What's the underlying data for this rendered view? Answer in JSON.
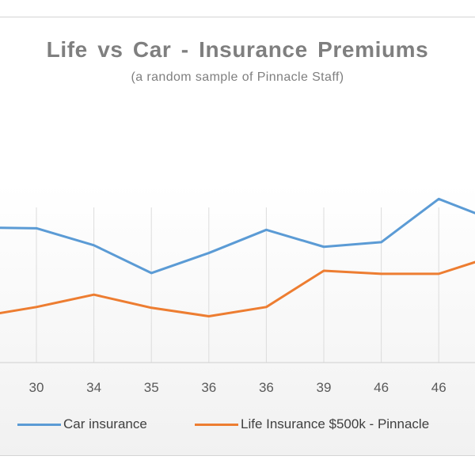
{
  "chart_data": {
    "type": "line",
    "title": "Life vs Car - Insurance Premiums",
    "subtitle": "(a random sample of Pinnacle Staff)",
    "categories": [
      "30",
      "34",
      "35",
      "36",
      "36",
      "39",
      "46",
      "46"
    ],
    "series": [
      {
        "name": "Car insurance",
        "color": "#5b9bd5",
        "values": [
          1740,
          1520,
          1160,
          1420,
          1720,
          1500,
          1560,
          2120
        ]
      },
      {
        "name": "Life Insurance $500k - Pinnacle",
        "color": "#ed7d31",
        "values": [
          720,
          880,
          710,
          600,
          720,
          1190,
          1150,
          1150
        ]
      }
    ],
    "edge_values": {
      "left": {
        "Car insurance": 1750,
        "Life Insurance $500k - Pinnacle": 590
      },
      "right": {
        "Car insurance": 1830,
        "Life Insurance $500k - Pinnacle": 1390
      }
    },
    "ylim": [
      0,
      3500
    ],
    "grid": "vertical",
    "legend_position": "bottom"
  }
}
